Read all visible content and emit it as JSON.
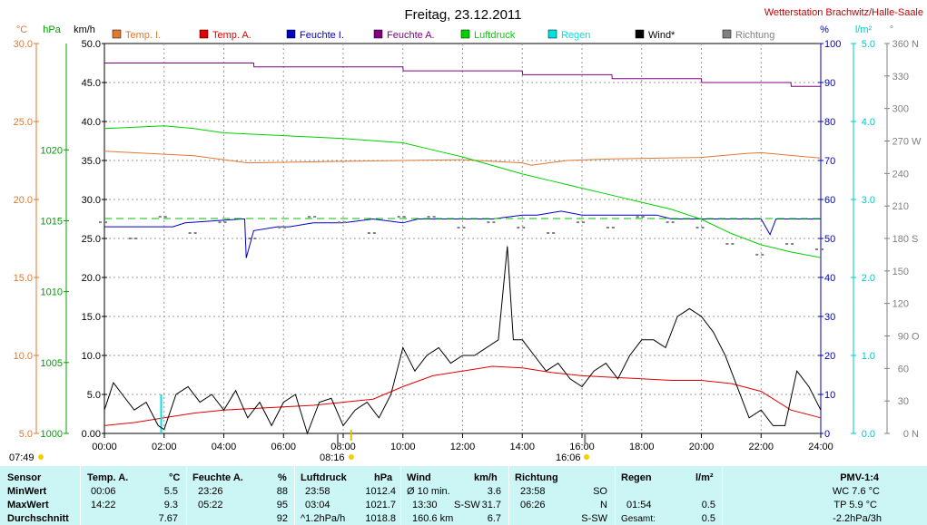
{
  "header": {
    "title": "Freitag, 23.12.2011",
    "station": "Wetterstation Brachwitz/Halle-Saale"
  },
  "colors": {
    "temp_i": "#e07830",
    "temp_a": "#e00000",
    "feuchte_i": "#0000c0",
    "feuchte_a": "#800080",
    "luftdruck": "#00d000",
    "regen": "#00e0e0",
    "wind": "#000000",
    "richtung": "#808080",
    "footer_bg": "#ccf5f5"
  },
  "legend": [
    {
      "label": "Temp. I.",
      "color": "#e07830"
    },
    {
      "label": "Temp. A.",
      "color": "#e00000"
    },
    {
      "label": "Feuchte I.",
      "color": "#0000c0"
    },
    {
      "label": "Feuchte A.",
      "color": "#800080"
    },
    {
      "label": "Luftdruck",
      "color": "#00d000"
    },
    {
      "label": "Regen",
      "color": "#00e0e0"
    },
    {
      "label": "Wind*",
      "color": "#000000"
    },
    {
      "label": "Richtung",
      "color": "#808080"
    }
  ],
  "chart_data": {
    "type": "line",
    "x_ticks": [
      "00:00",
      "02:00",
      "04:00",
      "06:00",
      "08:00",
      "10:00",
      "12:00",
      "14:00",
      "16:00",
      "18:00",
      "20:00",
      "22:00",
      "24:00"
    ],
    "x_range": [
      0,
      24
    ],
    "axes": {
      "celsius": {
        "unit": "°C",
        "range": [
          5,
          30
        ],
        "ticks": [
          "5.0",
          "10.0",
          "15.0",
          "20.0",
          "25.0",
          "30.0"
        ]
      },
      "hpa": {
        "unit": "hPa",
        "range": [
          1000,
          1027.5
        ],
        "ticks": [
          "1000",
          "1005",
          "1010",
          "1015",
          "1020"
        ]
      },
      "kmh": {
        "unit": "km/h",
        "range": [
          0,
          50
        ],
        "ticks": [
          "0.00",
          "5.0",
          "10.0",
          "15.0",
          "20.0",
          "25.0",
          "30.0",
          "35.0",
          "40.0",
          "45.0",
          "50.0"
        ]
      },
      "percent": {
        "unit": "%",
        "range": [
          0,
          100
        ],
        "ticks": [
          "0",
          "10",
          "20",
          "30",
          "40",
          "50",
          "60",
          "70",
          "80",
          "90",
          "100"
        ]
      },
      "rain": {
        "unit": "l/m²",
        "range": [
          0,
          5
        ],
        "ticks": [
          "0.0",
          "1.0",
          "2.0",
          "3.0",
          "4.0",
          "5.0"
        ]
      },
      "direction": {
        "unit": "°",
        "range": [
          0,
          360
        ],
        "ticks": [
          "0",
          "30",
          "60",
          "90",
          "120",
          "150",
          "180",
          "210",
          "240",
          "270",
          "300",
          "330",
          "360"
        ],
        "compass": {
          "0": "N",
          "90": "O",
          "180": "S",
          "270": "W",
          "360": "N"
        }
      }
    },
    "series": [
      {
        "name": "Temp. I.",
        "axis": "kmh",
        "x": [
          0,
          3,
          4.8,
          8,
          12,
          14,
          14.3,
          15.5,
          17,
          20,
          21.5,
          22,
          24
        ],
        "y": [
          36.2,
          35.6,
          34.7,
          34.9,
          35.1,
          34.7,
          34.4,
          35.0,
          35.2,
          35.4,
          35.9,
          36.0,
          35.3
        ]
      },
      {
        "name": "Temp. A.",
        "axis": "celsius",
        "x": [
          0,
          1,
          2,
          3,
          4,
          5,
          6,
          7,
          8,
          9,
          10,
          11,
          12,
          13,
          14,
          15,
          16,
          17,
          18,
          19,
          20,
          21,
          22,
          23,
          24
        ],
        "y": [
          5.5,
          5.7,
          6.0,
          6.3,
          6.5,
          6.6,
          6.7,
          6.8,
          7.0,
          7.2,
          8.0,
          8.7,
          9.0,
          9.3,
          9.2,
          8.9,
          8.7,
          8.6,
          8.5,
          8.4,
          8.4,
          8.2,
          7.7,
          6.5,
          6.0
        ]
      },
      {
        "name": "Feuchte I.",
        "axis": "percent",
        "x": [
          0,
          2.3,
          2.7,
          4.6,
          4.7,
          4.75,
          5.0,
          5.8,
          6.2,
          7,
          8,
          9,
          10,
          10.5,
          12,
          13,
          14,
          14.5,
          15.3,
          16,
          17,
          18.5,
          19,
          20.5,
          21,
          22,
          22.3,
          22.5,
          24
        ],
        "y": [
          53,
          53,
          54,
          55,
          55,
          45,
          52,
          53,
          53,
          54,
          54,
          55,
          54,
          55,
          55,
          55,
          56,
          56,
          57,
          56,
          56,
          56,
          55,
          55,
          55,
          55,
          51,
          55,
          55
        ]
      },
      {
        "name": "Feuchte A.",
        "axis": "percent",
        "x": [
          0,
          5,
          5.01,
          10,
          10.01,
          14,
          14.01,
          17,
          17.01,
          20,
          20.01,
          23,
          23.01,
          24
        ],
        "y": [
          95,
          95,
          94,
          94,
          93,
          93,
          92,
          92,
          91,
          91,
          90,
          90,
          89,
          89
        ]
      },
      {
        "name": "Luftdruck",
        "axis": "hpa",
        "x": [
          0,
          2,
          3,
          4,
          6,
          8,
          10,
          11,
          12,
          13,
          14,
          15,
          16,
          17,
          18,
          19,
          20,
          21,
          22,
          23,
          24
        ],
        "y": [
          1021.5,
          1021.7,
          1021.5,
          1021.2,
          1021.0,
          1020.8,
          1020.5,
          1020.0,
          1019.5,
          1018.9,
          1018.3,
          1017.8,
          1017.3,
          1016.8,
          1016.3,
          1015.8,
          1015.1,
          1014.1,
          1013.3,
          1012.8,
          1012.4
        ]
      },
      {
        "name": "Regen",
        "axis": "rain",
        "x": [
          1.9,
          1.9
        ],
        "y": [
          0,
          0.5
        ]
      },
      {
        "name": "Wind*",
        "axis": "kmh",
        "x": [
          0,
          0.3,
          0.6,
          1,
          1.4,
          1.8,
          2.0,
          2.4,
          2.8,
          3.2,
          3.6,
          4.0,
          4.4,
          4.8,
          5.2,
          5.6,
          6.0,
          6.4,
          6.8,
          7.2,
          7.6,
          8.0,
          8.4,
          8.8,
          9.2,
          9.6,
          10.0,
          10.4,
          10.8,
          11.2,
          11.6,
          12.0,
          12.4,
          12.8,
          13.2,
          13.5,
          13.7,
          14.0,
          14.4,
          14.8,
          15.2,
          15.6,
          16.0,
          16.4,
          16.8,
          17.2,
          17.6,
          18.0,
          18.4,
          18.8,
          19.2,
          19.6,
          20.0,
          20.4,
          20.8,
          21.2,
          21.6,
          22.0,
          22.4,
          22.8,
          23.2,
          23.6,
          24.0
        ],
        "y": [
          3,
          6.5,
          5,
          3,
          4,
          1,
          0.5,
          5,
          6,
          4,
          5,
          3,
          5.5,
          2,
          4,
          1,
          4,
          5,
          0,
          4,
          4.5,
          1,
          3,
          4,
          2,
          5,
          11,
          8,
          10,
          11,
          9,
          10,
          10,
          11,
          12,
          24,
          12,
          12,
          10,
          8,
          9,
          7,
          6,
          8,
          9,
          7,
          10,
          12,
          12,
          11,
          15,
          16,
          15,
          13,
          10,
          6,
          2,
          3,
          1,
          1,
          8,
          6,
          3
        ]
      },
      {
        "name": "Richtung",
        "axis": "direction",
        "x": [
          0,
          1,
          2,
          3,
          4,
          5,
          6,
          7,
          8,
          9,
          10,
          11,
          12,
          13,
          14,
          15,
          16,
          17,
          18,
          19,
          20,
          21,
          22,
          23,
          24
        ],
        "y": [
          195,
          180,
          200,
          185,
          195,
          180,
          190,
          200,
          195,
          185,
          200,
          200,
          190,
          195,
          190,
          185,
          195,
          190,
          200,
          195,
          190,
          175,
          165,
          175,
          170
        ]
      }
    ]
  },
  "markers": {
    "sunrise": "07:49",
    "sunset": "16:06",
    "moonrise": "08:16"
  },
  "footer": {
    "row_labels": [
      "Sensor",
      "MinWert",
      "MaxWert",
      "Durchschnitt"
    ],
    "temp": {
      "header": "Temp. A.",
      "unit": "°C",
      "min_time": "00:06",
      "min": "5.5",
      "max_time": "14:22",
      "max": "9.3",
      "avg": "7.67"
    },
    "hum": {
      "header": "Feuchte A.",
      "unit": "%",
      "min_time": "23:26",
      "min": "88",
      "max_time": "05:22",
      "max": "95",
      "avg": "92"
    },
    "press": {
      "header": "Luftdruck",
      "unit": "hPa",
      "min_time": "23:58",
      "min": "1012.4",
      "max_time": "03:04",
      "max": "1021.7",
      "trend": "^1.2hPa/h",
      "avg": "1018.8"
    },
    "wind": {
      "header": "Wind",
      "unit": "km/h",
      "r1_label": "Ø 10 min.",
      "r1_val": "3.6",
      "r2_time": "13:30",
      "r2_dir": "S-SW",
      "r2_val": "31.7",
      "r3_dist": "160.6 km",
      "r3_val": "6.7"
    },
    "dir": {
      "header": "Richtung",
      "r1_time": "23:58",
      "r1_val": "SO",
      "r2_time": "06:26",
      "r2_val": "N",
      "r3_val": "S-SW"
    },
    "rain": {
      "header": "Regen",
      "unit": "l/m²",
      "r2_time": "01:54",
      "r2_val": "0.5",
      "r3_label": "Gesamt:",
      "r3_val": "0.5"
    },
    "pmv": {
      "header": "PMV-1:4",
      "r1": "WC 7.6 °C",
      "r2": "TP 5.9 °C",
      "r3": "-2.2hPa/3h"
    }
  }
}
